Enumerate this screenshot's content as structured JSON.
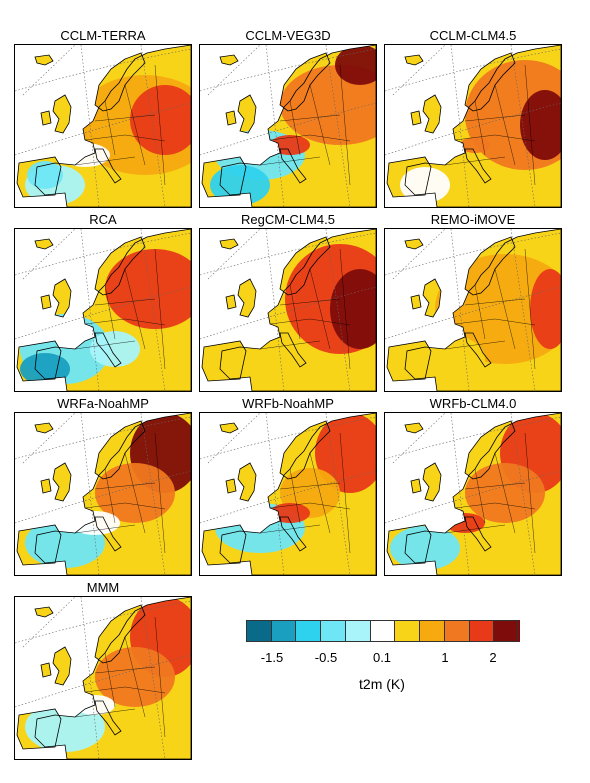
{
  "panels": [
    {
      "title": "CCLM-TERRA"
    },
    {
      "title": "CCLM-VEG3D"
    },
    {
      "title": "CCLM-CLM4.5"
    },
    {
      "title": "RCA"
    },
    {
      "title": "RegCM-CLM4.5"
    },
    {
      "title": "REMO-iMOVE"
    },
    {
      "title": "WRFa-NoahMP"
    },
    {
      "title": "WRFb-NoahMP"
    },
    {
      "title": "WRFb-CLM4.0"
    },
    {
      "title": "MMM"
    }
  ],
  "colorbar": {
    "colors": [
      "#0a6a8a",
      "#1a9fc0",
      "#2fd2ee",
      "#6fe6f6",
      "#a8f4fa",
      "#ffffff",
      "#f8d418",
      "#f6aa10",
      "#f07820",
      "#e83a18",
      "#7e0c0a"
    ],
    "tick_labels": [
      "-1.5",
      "-0.5",
      "0.1",
      "1",
      "2"
    ],
    "label": "t2m (K)"
  }
}
